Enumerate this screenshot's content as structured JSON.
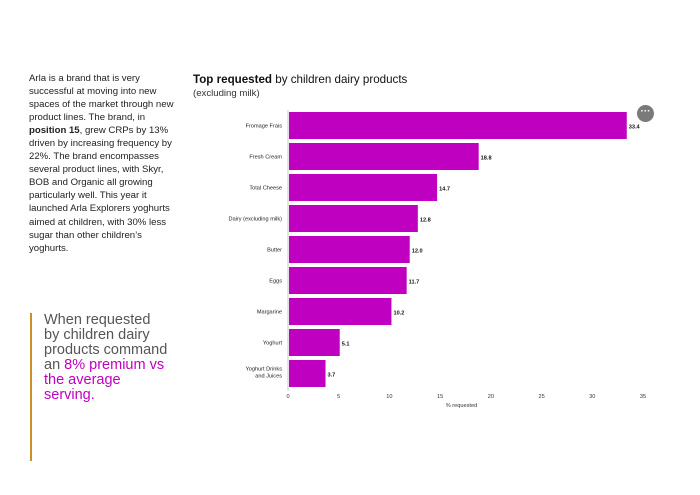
{
  "intro": {
    "p1": "Arla is a brand that is very successful at moving into new spaces of the market through new product lines. The brand, in ",
    "bold": "position 15",
    "p2": ", grew CRPs by 13% driven by increasing frequency by 22%. The brand encompasses several product lines, with Skyr, BOB and Organic all growing particularly well. This year it launched Arla Explorers yoghurts aimed at children, with 30% less sugar than other children’s yoghurts."
  },
  "quote": {
    "text": "When requested by children dairy products command an",
    "highlight": "8% premium vs the average serving."
  },
  "chart_title": {
    "bold": "Top requested",
    "rest": " by children dairy products"
  },
  "chart_subtitle": "(excluding milk)",
  "menu_icon": "more-horizontal-icon",
  "colors": {
    "bar": "#c000c0",
    "accent": "#c000c0",
    "quote_bar": "#c8922a"
  },
  "chart_data": {
    "type": "bar",
    "orientation": "horizontal",
    "categories": [
      "Fromage Frais",
      "Fresh Cream",
      "Total Cheese",
      "Dairy (excluding milk)",
      "Butter",
      "Eggs",
      "Margarine",
      "Yoghurt",
      "Yoghurt Drinks and Juices"
    ],
    "values": [
      33.4,
      18.8,
      14.7,
      12.8,
      12.0,
      11.7,
      10.2,
      5.1,
      3.7
    ],
    "value_labels": [
      "33.4",
      "18.8",
      "14.7",
      "12.8",
      "12.0",
      "11.7",
      "10.2",
      "5.1",
      "3.7"
    ],
    "xlabel": "% requested",
    "xlim": [
      0,
      35
    ],
    "xticks": [
      0,
      5,
      10,
      15,
      20,
      25,
      30,
      35
    ],
    "grid": false,
    "legend": "none"
  }
}
